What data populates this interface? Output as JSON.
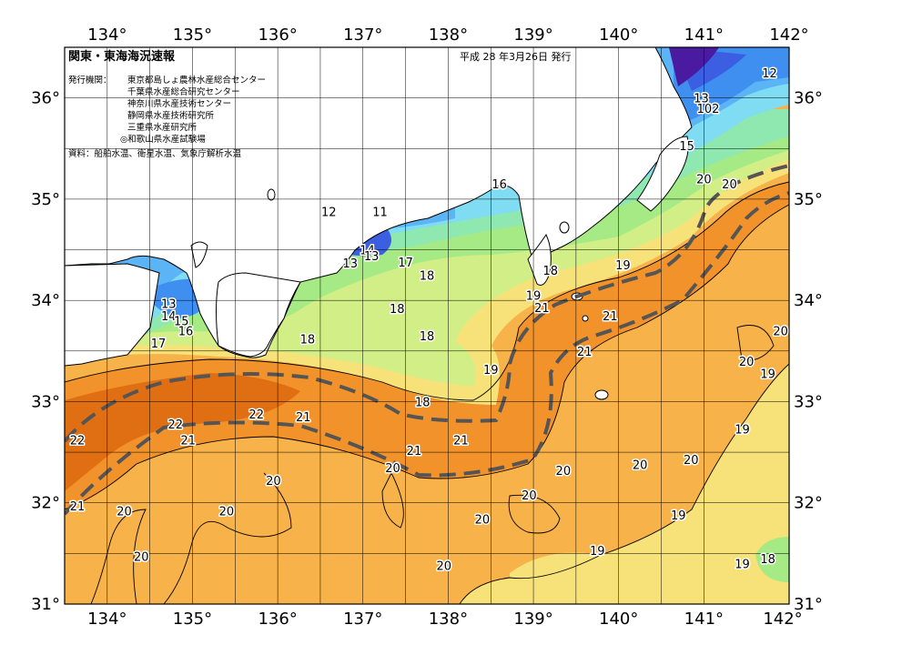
{
  "header": {
    "title": "関東・東海海況速報",
    "date": "平成 28 年3月26日 発行",
    "issuer_label": "発行機関：",
    "issuers": [
      "東京都島しょ農林水産総合センター",
      "千葉県水産総合研究センター",
      "神奈川県水産技術センター",
      "静岡県水産技術研究所",
      "三重県水産研究所",
      "◎和歌山県水産試験場"
    ],
    "source": "資料：船舶水温、衛星水温、気象庁解析水温"
  },
  "axes": {
    "lon_labels": [
      "134°",
      "135°",
      "136°",
      "137°",
      "138°",
      "139°",
      "140°",
      "141°",
      "142°"
    ],
    "lat_labels": [
      "36°",
      "35°",
      "34°",
      "33°",
      "32°",
      "31°"
    ]
  },
  "colors": {
    "t11": "#4a1aa0",
    "t12": "#3b5fe0",
    "t13": "#3f8ff0",
    "t14": "#5ab4f5",
    "t15": "#7fdcf2",
    "t16": "#8fe8b0",
    "t17": "#a6ea86",
    "t18": "#d2ee86",
    "t19": "#f7e27a",
    "t20": "#f8b24a",
    "t21": "#f2922a",
    "t22": "#e06e12",
    "land": "#ffffff",
    "coast": "#000000",
    "kuroshio_axis": "#555555"
  },
  "contour_labels": [
    {
      "text": "12",
      "lon": 141.77,
      "lat": 36.25
    },
    {
      "text": "13",
      "lon": 140.97,
      "lat": 36.0
    },
    {
      "text": "102",
      "lon": 141.05,
      "lat": 35.9
    },
    {
      "text": "15",
      "lon": 140.8,
      "lat": 35.53
    },
    {
      "text": "20",
      "lon": 141.0,
      "lat": 35.2
    },
    {
      "text": "20",
      "lon": 141.3,
      "lat": 35.15
    },
    {
      "text": "16",
      "lon": 138.6,
      "lat": 35.15
    },
    {
      "text": "12",
      "lon": 136.6,
      "lat": 34.88
    },
    {
      "text": "11",
      "lon": 137.2,
      "lat": 34.88
    },
    {
      "text": "14",
      "lon": 137.05,
      "lat": 34.5
    },
    {
      "text": "13",
      "lon": 137.1,
      "lat": 34.44
    },
    {
      "text": "13",
      "lon": 136.85,
      "lat": 34.37
    },
    {
      "text": "17",
      "lon": 137.5,
      "lat": 34.38
    },
    {
      "text": "18",
      "lon": 137.75,
      "lat": 34.25
    },
    {
      "text": "18",
      "lon": 139.2,
      "lat": 34.3
    },
    {
      "text": "19",
      "lon": 140.05,
      "lat": 34.35
    },
    {
      "text": "19",
      "lon": 139.0,
      "lat": 34.05
    },
    {
      "text": "13",
      "lon": 134.72,
      "lat": 33.97
    },
    {
      "text": "14",
      "lon": 134.72,
      "lat": 33.85
    },
    {
      "text": "15",
      "lon": 134.87,
      "lat": 33.8
    },
    {
      "text": "16",
      "lon": 134.92,
      "lat": 33.7
    },
    {
      "text": "17",
      "lon": 134.6,
      "lat": 33.58
    },
    {
      "text": "18",
      "lon": 137.4,
      "lat": 33.92
    },
    {
      "text": "18",
      "lon": 136.35,
      "lat": 33.62
    },
    {
      "text": "18",
      "lon": 137.75,
      "lat": 33.65
    },
    {
      "text": "21",
      "lon": 139.1,
      "lat": 33.93
    },
    {
      "text": "21",
      "lon": 139.9,
      "lat": 33.85
    },
    {
      "text": "21",
      "lon": 139.6,
      "lat": 33.5
    },
    {
      "text": "20",
      "lon": 141.9,
      "lat": 33.7
    },
    {
      "text": "20",
      "lon": 141.5,
      "lat": 33.4
    },
    {
      "text": "19",
      "lon": 141.75,
      "lat": 33.28
    },
    {
      "text": "19",
      "lon": 138.5,
      "lat": 33.32
    },
    {
      "text": "18",
      "lon": 137.7,
      "lat": 33.0
    },
    {
      "text": "22",
      "lon": 133.65,
      "lat": 32.62
    },
    {
      "text": "22",
      "lon": 134.8,
      "lat": 32.78
    },
    {
      "text": "22",
      "lon": 135.75,
      "lat": 32.88
    },
    {
      "text": "21",
      "lon": 136.3,
      "lat": 32.85
    },
    {
      "text": "21",
      "lon": 134.95,
      "lat": 32.62
    },
    {
      "text": "21",
      "lon": 137.6,
      "lat": 32.52
    },
    {
      "text": "21",
      "lon": 138.15,
      "lat": 32.62
    },
    {
      "text": "19",
      "lon": 141.45,
      "lat": 32.73
    },
    {
      "text": "20",
      "lon": 137.35,
      "lat": 32.35
    },
    {
      "text": "20",
      "lon": 139.35,
      "lat": 32.32
    },
    {
      "text": "20",
      "lon": 140.25,
      "lat": 32.38
    },
    {
      "text": "20",
      "lon": 140.85,
      "lat": 32.43
    },
    {
      "text": "20",
      "lon": 135.95,
      "lat": 32.22
    },
    {
      "text": "20",
      "lon": 138.95,
      "lat": 32.08
    },
    {
      "text": "20",
      "lon": 134.2,
      "lat": 31.92
    },
    {
      "text": "20",
      "lon": 135.4,
      "lat": 31.92
    },
    {
      "text": "21",
      "lon": 133.65,
      "lat": 31.97
    },
    {
      "text": "19",
      "lon": 140.7,
      "lat": 31.88
    },
    {
      "text": "20",
      "lon": 138.4,
      "lat": 31.84
    },
    {
      "text": "19",
      "lon": 139.75,
      "lat": 31.53
    },
    {
      "text": "20",
      "lon": 134.4,
      "lat": 31.47
    },
    {
      "text": "20",
      "lon": 137.95,
      "lat": 31.38
    },
    {
      "text": "19",
      "lon": 141.45,
      "lat": 31.4
    },
    {
      "text": "18",
      "lon": 141.75,
      "lat": 31.45
    }
  ]
}
